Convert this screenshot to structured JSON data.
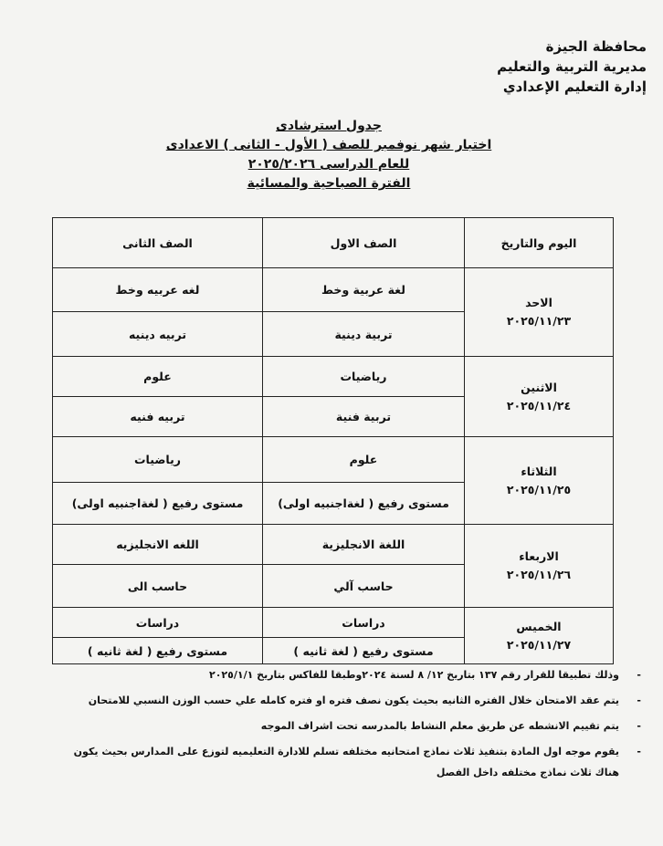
{
  "header": {
    "line1": "محافظة الجيزة",
    "line2": "مديرية التربية والتعليم",
    "line3": "إدارة التعليم الإعدادي"
  },
  "titles": {
    "t1": "جدول استرشادى",
    "t2": "اختبار شهر نوفمبر للصف ( الأول - الثانى ) الاعدادى",
    "t3": "للعام الدراسى ٢٠٢٥/٢٠٢٦",
    "t4": "الفترة الصباحية والمسائية"
  },
  "table": {
    "headers": [
      "اليوم والتاريخ",
      "الصف الاول",
      "الصف الثانى"
    ],
    "rows": [
      {
        "day": "الاحد",
        "date": "٢٠٢٥/١١/٢٣",
        "g1": [
          "لغة عربية وخط",
          "تربية دينية"
        ],
        "g2": [
          "لغه عربيه وخط",
          "تربيه دينيه"
        ]
      },
      {
        "day": "الاثنين",
        "date": "٢٠٢٥/١١/٢٤",
        "g1": [
          "رياضيات",
          "تربية فنية"
        ],
        "g2": [
          "علوم",
          "تربيه فنيه"
        ]
      },
      {
        "day": "الثلاثاء",
        "date": "٢٠٢٥/١١/٢٥",
        "g1": [
          "علوم",
          "مستوى رفيع ( لغةاجنبيه اولى)"
        ],
        "g2": [
          "رياضيات",
          "مستوى رفيع ( لغةاجنبيه اولى)"
        ]
      },
      {
        "day": "الاربعاء",
        "date": "٢٠٢٥/١١/٢٦",
        "g1": [
          "اللغة الانجليزية",
          "حاسب آلي"
        ],
        "g2": [
          "اللغه الانجليزيه",
          "حاسب الى"
        ]
      },
      {
        "day": "الخميس",
        "date": "٢٠٢٥/١١/٢٧",
        "g1": [
          "دراسات",
          "مستوى رفيع ( لغة ثانيه )"
        ],
        "g2": [
          "دراسات",
          "مستوى رفيع ( لغة ثانيه )"
        ]
      }
    ]
  },
  "notes": [
    "وذلك تطبيقا للقرار رقم ١٣٧ بتاريخ ١٢/ ٨ لسنة ٢٠٢٤وطبقا للفاكس بتاريخ ٢٠٢٥/١/١",
    "يتم عقد الامتحان خلال الفتره الثانيه بحيث يكون نصف فتره او فتره كامله علي حسب الوزن النسبي للامتحان",
    "يتم تقييم الانشطه عن طريق معلم النشاط بالمدرسه تحت اشراف الموجه",
    "يقوم موجه اول المادة بتنفيذ ثلاث نماذج امتحانيه مختلفه تسلم للادارة التعليميه لتوزع على المدارس بحيث يكون",
    "هناك ثلاث نماذج مختلفه داخل الفصل"
  ]
}
